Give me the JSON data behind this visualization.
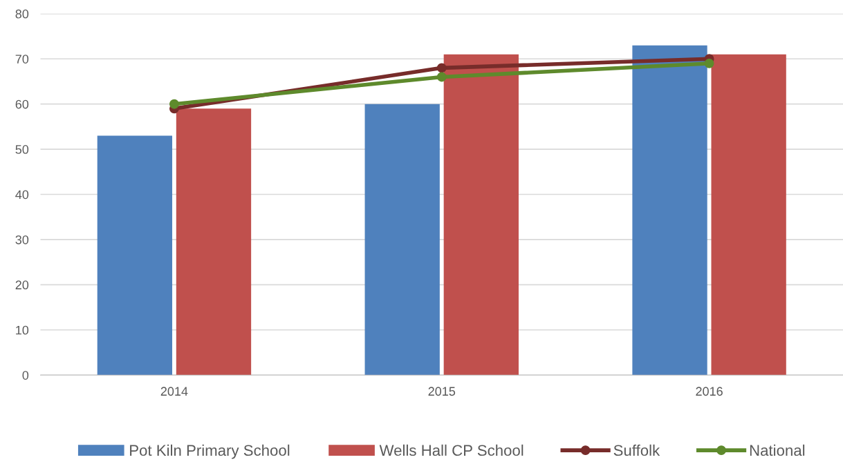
{
  "chart_data": {
    "type": "bar",
    "categories": [
      "2014",
      "2015",
      "2016"
    ],
    "series": [
      {
        "name": "Pot Kiln Primary School",
        "color": "#4f81bd",
        "values": [
          53,
          60,
          73
        ]
      },
      {
        "name": "Wells Hall CP School",
        "color": "#c0504d",
        "values": [
          59,
          71,
          71
        ]
      },
      {
        "name": "Suffolk",
        "type": "line",
        "color": "#772c2a",
        "values": [
          59,
          68,
          70
        ]
      },
      {
        "name": "National",
        "type": "line",
        "color": "#5e8a2c",
        "values": [
          60,
          66,
          69
        ]
      }
    ],
    "ylim": [
      0,
      80
    ],
    "yticks": [
      0,
      10,
      20,
      30,
      40,
      50,
      60,
      70,
      80
    ],
    "grid": "y",
    "legend": "bottom",
    "marker": "circle",
    "line_style": "solid"
  }
}
